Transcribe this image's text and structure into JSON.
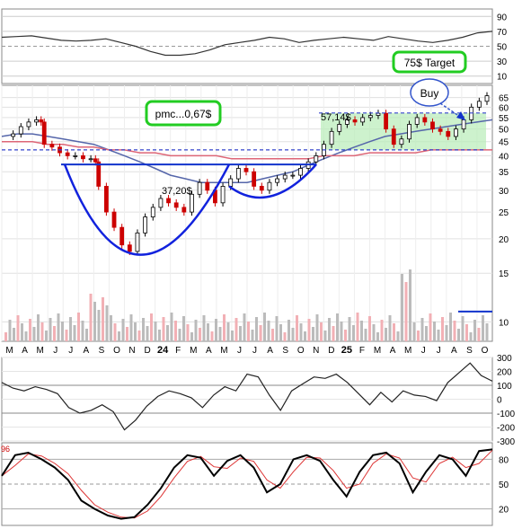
{
  "chart_data": {
    "type": "candlestick",
    "x_months": [
      "M",
      "A",
      "M",
      "J",
      "J",
      "A",
      "S",
      "O",
      "N",
      "D",
      "24",
      "F",
      "M",
      "A",
      "M",
      "J",
      "J",
      "A",
      "S",
      "O",
      "N",
      "D",
      "25",
      "F",
      "M",
      "A",
      "M",
      "J",
      "J",
      "A",
      "S",
      "O"
    ],
    "price": {
      "ylabels": [
        10,
        15,
        20,
        25,
        30,
        35,
        40,
        45,
        50,
        55,
        60,
        65
      ],
      "series": [
        {
          "x": 0,
          "close": 47
        },
        {
          "x": 0.5,
          "close": 48
        },
        {
          "x": 1,
          "close": 51
        },
        {
          "x": 1.5,
          "close": 53
        },
        {
          "x": 2,
          "close": 54
        },
        {
          "x": 2.3,
          "close": 53
        },
        {
          "x": 2.5,
          "close": 44
        },
        {
          "x": 3,
          "close": 43
        },
        {
          "x": 3.5,
          "close": 41
        },
        {
          "x": 4,
          "close": 40
        },
        {
          "x": 4.5,
          "close": 40
        },
        {
          "x": 5,
          "close": 39
        },
        {
          "x": 5.5,
          "close": 39
        },
        {
          "x": 5.8,
          "close": 38
        },
        {
          "x": 6,
          "close": 31
        },
        {
          "x": 6.5,
          "close": 25
        },
        {
          "x": 7,
          "close": 22
        },
        {
          "x": 7.5,
          "close": 19
        },
        {
          "x": 8,
          "close": 18
        },
        {
          "x": 8.5,
          "close": 21
        },
        {
          "x": 9,
          "close": 24
        },
        {
          "x": 9.5,
          "close": 26
        },
        {
          "x": 10,
          "close": 28
        },
        {
          "x": 10.5,
          "close": 27
        },
        {
          "x": 11,
          "close": 26
        },
        {
          "x": 11.5,
          "close": 25
        },
        {
          "x": 12,
          "close": 29
        },
        {
          "x": 12.5,
          "close": 32
        },
        {
          "x": 13,
          "close": 30
        },
        {
          "x": 13.5,
          "close": 27
        },
        {
          "x": 14,
          "close": 31
        },
        {
          "x": 14.5,
          "close": 33
        },
        {
          "x": 15,
          "close": 36
        },
        {
          "x": 15.5,
          "close": 35
        },
        {
          "x": 16,
          "close": 31
        },
        {
          "x": 16.5,
          "close": 30
        },
        {
          "x": 17,
          "close": 32
        },
        {
          "x": 17.5,
          "close": 33
        },
        {
          "x": 18,
          "close": 34
        },
        {
          "x": 18.5,
          "close": 34
        },
        {
          "x": 19,
          "close": 36
        },
        {
          "x": 19.5,
          "close": 38
        },
        {
          "x": 20,
          "close": 40
        },
        {
          "x": 20.5,
          "close": 44
        },
        {
          "x": 21,
          "close": 49
        },
        {
          "x": 21.5,
          "close": 52
        },
        {
          "x": 22,
          "close": 54
        },
        {
          "x": 22.5,
          "close": 53
        },
        {
          "x": 23,
          "close": 55
        },
        {
          "x": 23.5,
          "close": 56
        },
        {
          "x": 24,
          "close": 57
        },
        {
          "x": 24.5,
          "close": 50
        },
        {
          "x": 25,
          "close": 44
        },
        {
          "x": 25.5,
          "close": 46
        },
        {
          "x": 26,
          "close": 52
        },
        {
          "x": 26.5,
          "close": 55
        },
        {
          "x": 27,
          "close": 53
        },
        {
          "x": 27.5,
          "close": 50
        },
        {
          "x": 28,
          "close": 49
        },
        {
          "x": 28.5,
          "close": 47
        },
        {
          "x": 29,
          "close": 50
        },
        {
          "x": 29.5,
          "close": 54
        },
        {
          "x": 30,
          "close": 60
        },
        {
          "x": 30.5,
          "close": 63
        },
        {
          "x": 31,
          "close": 66
        }
      ],
      "annotations": {
        "pmc": "pmc...0,67$",
        "target": "75$ Target",
        "buy": "Buy",
        "level_high": "57,14$",
        "level_low": "37,20$",
        "level_high_value": 57.14,
        "level_low_value": 37.2,
        "lower_dashed_value": 42
      }
    },
    "rsi": {
      "ylabels": [
        10,
        30,
        50,
        70,
        90
      ]
    },
    "cci": {
      "ylabels": [
        300,
        200,
        100,
        0,
        -100,
        -200,
        -300
      ]
    },
    "stoch": {
      "ylabels": [
        20,
        50,
        80
      ],
      "leading_label": "96"
    }
  }
}
